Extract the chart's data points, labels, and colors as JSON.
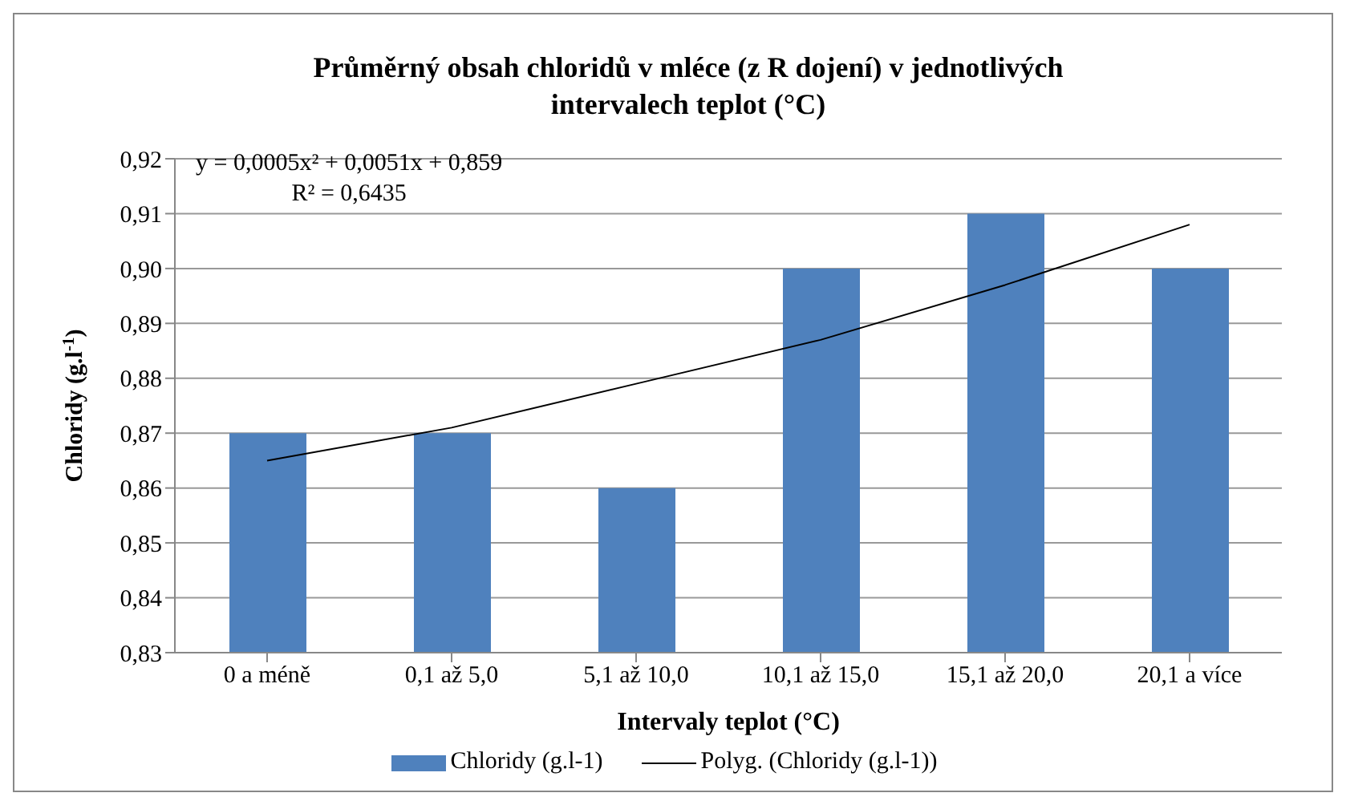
{
  "chart_data": {
    "type": "bar",
    "title": "Průměrný obsah chloridů v mléce (z R dojení)  v jednotlivých intervalech teplot  (°C)",
    "xlabel": "Intervaly teplot (°C)",
    "ylabel": "Chloridy (g.l$^{-1}$)",
    "categories": [
      "0 a méně",
      "0,1 až 5,0",
      "5,1 až 10,0",
      "10,1 až 15,0",
      "15,1 až 20,0",
      "20,1 a více"
    ],
    "series": [
      {
        "name": "Chloridy (g.l-1)",
        "color": "#4f81bd",
        "values": [
          0.87,
          0.87,
          0.86,
          0.9,
          0.91,
          0.9
        ]
      },
      {
        "name": "Polyg. (Chloridy (g.l-1))",
        "type": "line",
        "color": "#000000",
        "marker": "none",
        "line_style": "solid",
        "values": [
          0.865,
          0.871,
          0.879,
          0.887,
          0.897,
          0.908
        ]
      }
    ],
    "ylim": [
      0.83,
      0.92
    ],
    "yticks": [
      {
        "value": 0.83,
        "label": "0,83"
      },
      {
        "value": 0.84,
        "label": "0,84"
      },
      {
        "value": 0.85,
        "label": "0,85"
      },
      {
        "value": 0.86,
        "label": "0,86"
      },
      {
        "value": 0.87,
        "label": "0,87"
      },
      {
        "value": 0.88,
        "label": "0,88"
      },
      {
        "value": 0.89,
        "label": "0,89"
      },
      {
        "value": 0.9,
        "label": "0,90"
      },
      {
        "value": 0.91,
        "label": "0,91"
      },
      {
        "value": 0.92,
        "label": "0,92"
      }
    ],
    "grid": "y",
    "legend": "bottom",
    "annotations": [
      "y = 0,0005x² + 0,0051x + 0,859",
      "R² = 0,6435"
    ]
  }
}
